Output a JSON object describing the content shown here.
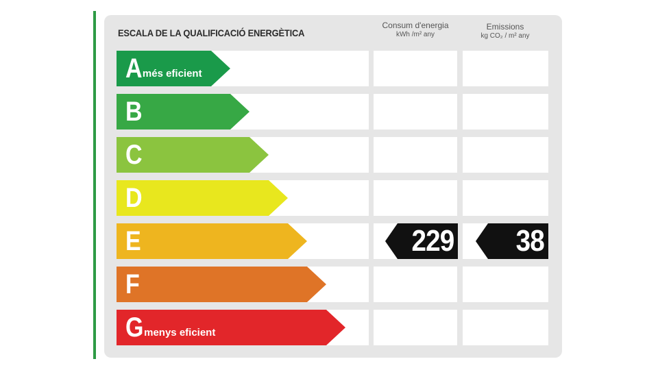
{
  "title": "ESCALA DE LA QUALIFICACIÓ ENERGÈTICA",
  "columns": {
    "consum": {
      "label": "Consum d'energia",
      "unit": "kWh /m² any"
    },
    "emissions": {
      "label": "Emissions",
      "unit": "kg CO₂ / m² any"
    }
  },
  "ratings": [
    {
      "letter": "A",
      "desc": "més eficient",
      "color": "#1a9a4a"
    },
    {
      "letter": "B",
      "desc": "",
      "color": "#37a845"
    },
    {
      "letter": "C",
      "desc": "",
      "color": "#8bc43f"
    },
    {
      "letter": "D",
      "desc": "",
      "color": "#e8e71e"
    },
    {
      "letter": "E",
      "desc": "",
      "color": "#eeb51f"
    },
    {
      "letter": "F",
      "desc": "",
      "color": "#df7427"
    },
    {
      "letter": "G",
      "desc": "menys eficient",
      "color": "#e2262a"
    }
  ],
  "current_rating": "E",
  "values": {
    "consum": "229",
    "emissions": "38"
  }
}
